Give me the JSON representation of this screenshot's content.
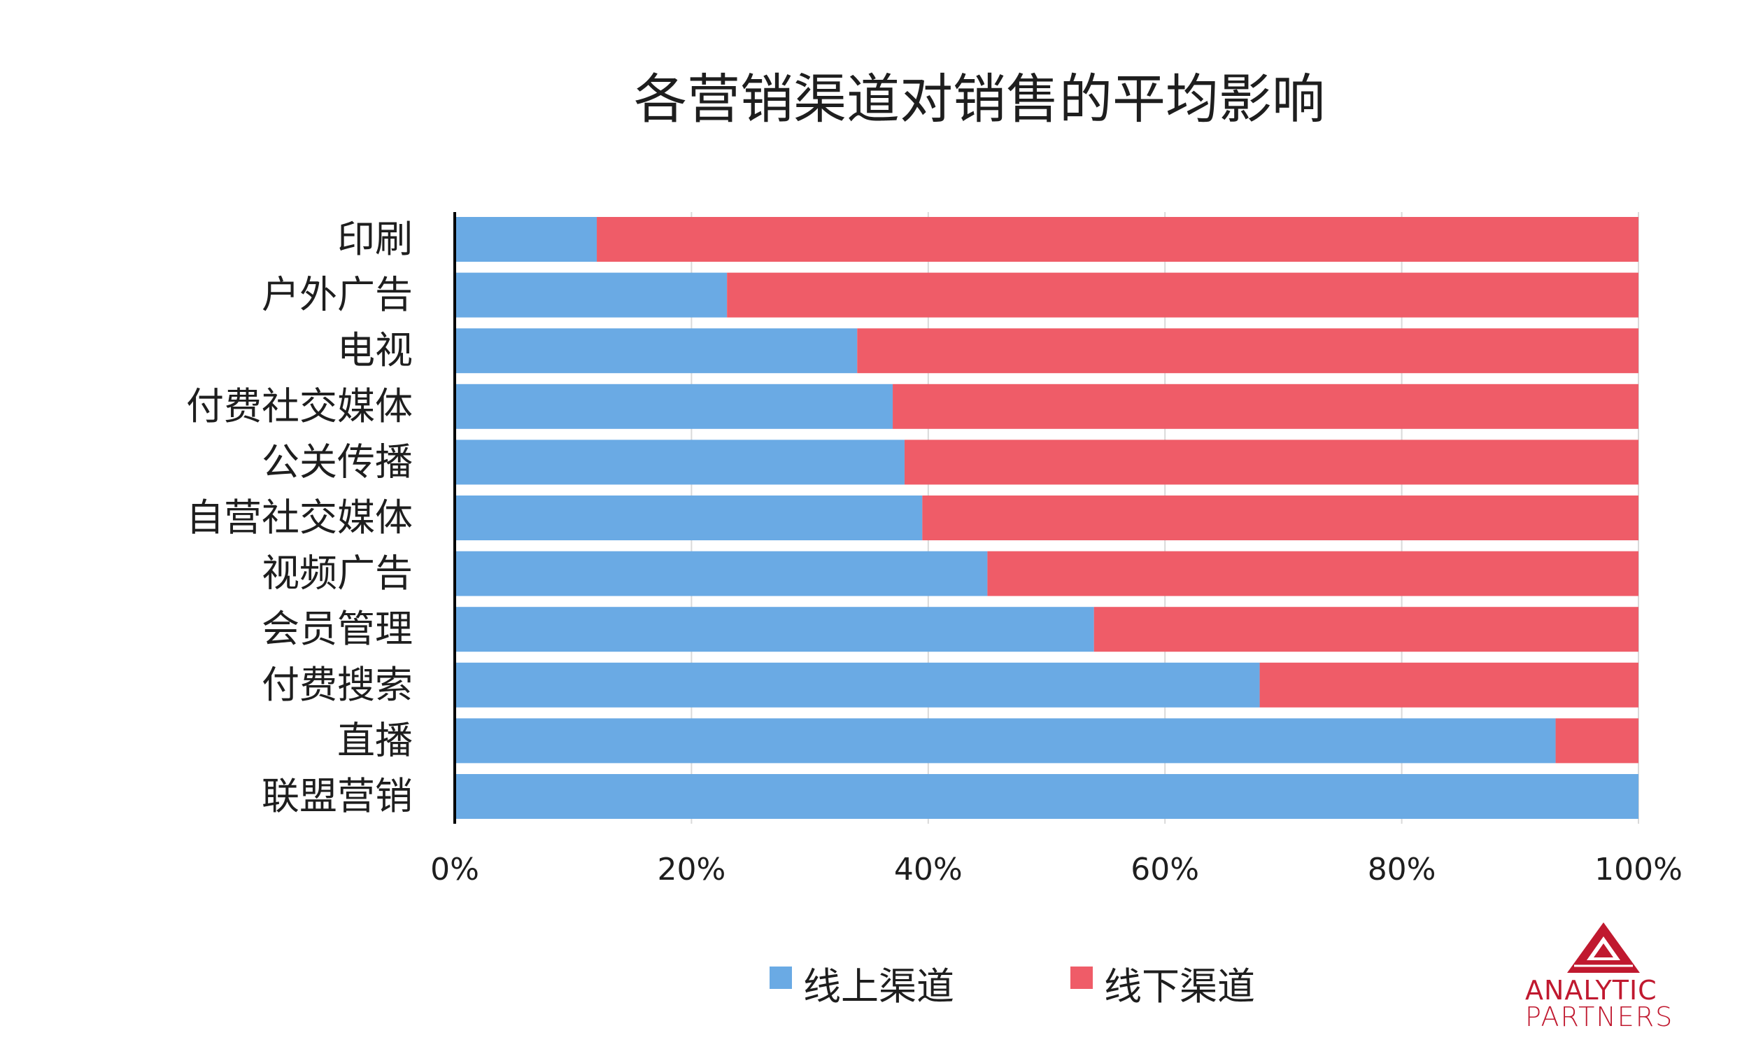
{
  "chart_data": {
    "type": "bar",
    "orientation": "horizontal",
    "stacked": "percent",
    "title": "各营销渠道对销售的平均影响",
    "categories": [
      "印刷",
      "户外广告",
      "电视",
      "付费社交媒体",
      "公关传播",
      "自营社交媒体",
      "视频广告",
      "会员管理",
      "付费搜索",
      "直播",
      "联盟营销"
    ],
    "series": [
      {
        "name": "线上渠道",
        "color": "#6aaae4",
        "values": [
          12,
          23,
          34,
          37,
          38,
          39.5,
          45,
          54,
          68,
          93,
          100
        ]
      },
      {
        "name": "线下渠道",
        "color": "#ef5c68",
        "values": [
          88,
          77,
          66,
          63,
          62,
          60.5,
          55,
          46,
          32,
          7,
          0
        ]
      }
    ],
    "xlim": [
      0,
      100
    ],
    "xticks": [
      "0%",
      "20%",
      "40%",
      "60%",
      "80%",
      "100%"
    ],
    "grid": true,
    "legend_position": "bottom"
  },
  "logo": {
    "line1": "ANALYTIC",
    "line2": "PARTNERS",
    "color": "#c0192f"
  }
}
